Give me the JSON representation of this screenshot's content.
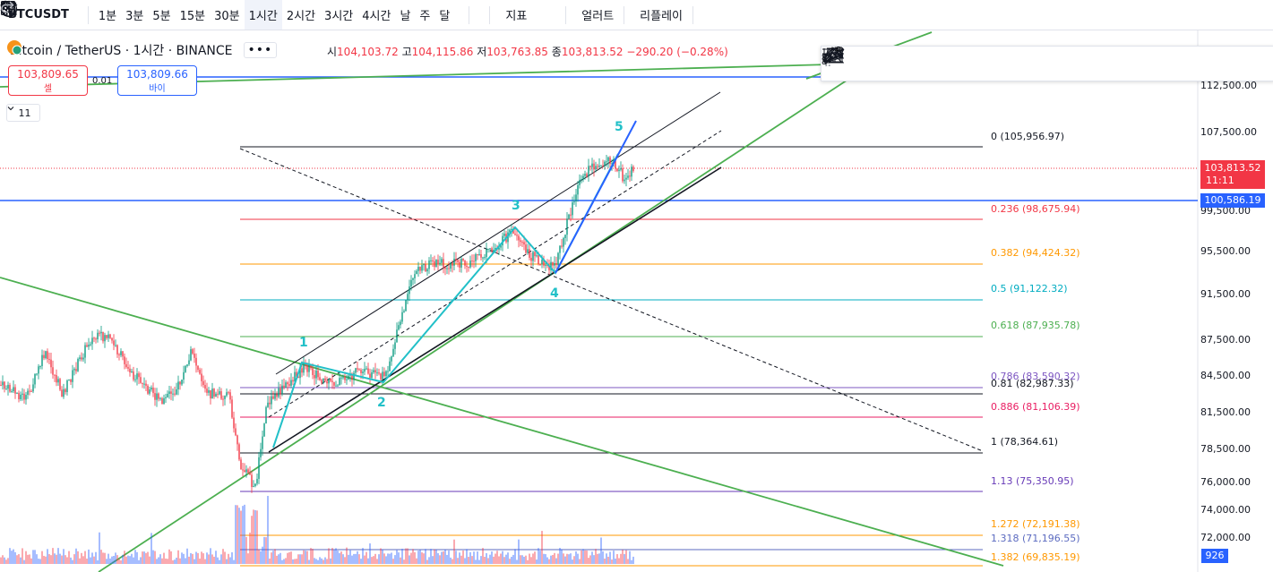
{
  "toolbar": {
    "symbol": "BTCUSDT",
    "intervals": [
      "1분",
      "3분",
      "5분",
      "15분",
      "30분",
      "1시간",
      "2시간",
      "3시간",
      "4시간",
      "날",
      "주",
      "달"
    ],
    "active_interval": "1시간",
    "indicators_label": "지표",
    "alerts_label": "얼러트",
    "replay_label": "리플레이"
  },
  "legend": {
    "title": "Bitcoin / TetherUS · 1시간 · BINANCE",
    "open_label": "시",
    "open": "104,103.72",
    "high_label": "고",
    "high": "104,115.86",
    "low_label": "저",
    "low": "103,763.85",
    "close_label": "종",
    "close": "103,813.52",
    "change": "−290.20 (−0.28%)"
  },
  "trade": {
    "sell_price": "103,809.65",
    "sell_label": "셀",
    "spread": "0.01",
    "buy_price": "103,809.66",
    "buy_label": "바이"
  },
  "indicator_count": "11",
  "price_axis": [
    "112,500.00",
    "107,500.00",
    "99,500.00",
    "95,500.00",
    "91,500.00",
    "87,500.00",
    "84,500.00",
    "81,500.00",
    "78,500.00",
    "76,000.00",
    "74,000.00",
    "72,000.00"
  ],
  "tags": {
    "current_price": "103,813.52",
    "countdown": "11:11",
    "hline_price": "100,586.19",
    "volume": "926"
  },
  "fib_levels": [
    {
      "label": "0 (105,956.97)",
      "color": "#131722"
    },
    {
      "label": "0.236 (98,675.94)",
      "color": "#f23645"
    },
    {
      "label": "0.382 (94,424.32)",
      "color": "#ff9800"
    },
    {
      "label": "0.5 (91,122.32)",
      "color": "#00acc1"
    },
    {
      "label": "0.618 (87,935.78)",
      "color": "#4caf50"
    },
    {
      "label": "0.786 (83,590.32)",
      "color": "#7e57c2"
    },
    {
      "label": "0.81 (82,987.33)",
      "color": "#131722"
    },
    {
      "label": "0.886 (81,106.39)",
      "color": "#e91e63"
    },
    {
      "label": "1 (78,364.61)",
      "color": "#131722"
    },
    {
      "label": "1.13 (75,350.95)",
      "color": "#673ab7"
    },
    {
      "label": "1.272 (72,191.38)",
      "color": "#ff9800"
    },
    {
      "label": "1.318 (71,196.55)",
      "color": "#5c6bc0"
    },
    {
      "label": "1.382 (69,835.19)",
      "color": "#ff9800"
    }
  ],
  "waves": [
    "1",
    "2",
    "3",
    "4",
    "5"
  ],
  "colors": {
    "up": "#089981",
    "down": "#f23645",
    "accent": "#2962ff",
    "trend": "#4caf50",
    "wave": "#22c0c8"
  },
  "icons": [
    "search-icon",
    "plus-icon",
    "chevron-down-icon",
    "candle-icon",
    "indicator-icon",
    "layout-icon",
    "alarm-icon",
    "rewind-icon",
    "undo-icon",
    "redo-icon",
    "more-icon"
  ]
}
